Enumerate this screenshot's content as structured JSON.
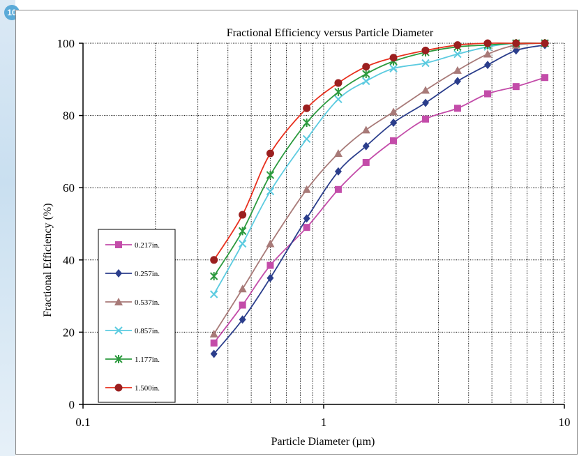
{
  "page": {
    "badge": "10"
  },
  "chart_data": {
    "type": "line",
    "title": "Fractional Efficiency versus Particle Diameter",
    "xlabel": "Particle Diameter (µm)",
    "ylabel": "Fractional Efficiency (%)",
    "xscale": "log",
    "xlim": [
      0.1,
      10
    ],
    "ylim": [
      0,
      100
    ],
    "x_ticks": [
      {
        "value": 0.1,
        "label": "0.1"
      },
      {
        "value": 1,
        "label": "1"
      },
      {
        "value": 10,
        "label": "10"
      }
    ],
    "y_ticks": [
      {
        "value": 0,
        "label": "0"
      },
      {
        "value": 20,
        "label": "20"
      },
      {
        "value": 40,
        "label": "40"
      },
      {
        "value": 60,
        "label": "60"
      },
      {
        "value": 80,
        "label": "80"
      },
      {
        "value": 100,
        "label": "100"
      }
    ],
    "grid": true,
    "legend_position": "left",
    "x": [
      0.35,
      0.46,
      0.6,
      0.85,
      1.15,
      1.5,
      1.95,
      2.65,
      3.6,
      4.8,
      6.3,
      8.3
    ],
    "series": [
      {
        "name": "0.217in.",
        "color": "#c34ca9",
        "marker": "square",
        "values": [
          17,
          27.5,
          38.5,
          49,
          59.5,
          67,
          73,
          79,
          82,
          86,
          88,
          90.5
        ]
      },
      {
        "name": "0.257in.",
        "color": "#2b3e8c",
        "marker": "diamond",
        "values": [
          14,
          23.5,
          35,
          51.5,
          64.5,
          71.5,
          78,
          83.5,
          89.5,
          94,
          98,
          99.5
        ]
      },
      {
        "name": "0.537in.",
        "color": "#a87a78",
        "marker": "triangle",
        "values": [
          19.5,
          32,
          44.5,
          59.5,
          69.5,
          76,
          81,
          87,
          92.5,
          97,
          99.5,
          100
        ]
      },
      {
        "name": "0.857in.",
        "color": "#5ccbe0",
        "marker": "x",
        "values": [
          30.5,
          44.5,
          59,
          73.5,
          84.5,
          89.5,
          93,
          94.5,
          97,
          99,
          100,
          100
        ]
      },
      {
        "name": "1.177in.",
        "color": "#2c9a3e",
        "marker": "star",
        "values": [
          35.5,
          48,
          63.5,
          78,
          86.5,
          91.5,
          95,
          97.5,
          99,
          99.5,
          100,
          100
        ]
      },
      {
        "name": "1.500in.",
        "color": "#9b1f1f",
        "marker": "circle",
        "values": [
          40,
          52.5,
          69.5,
          82,
          89,
          93.5,
          96,
          98,
          99.5,
          100,
          100,
          100
        ],
        "line_color": "#e8301e"
      }
    ]
  }
}
